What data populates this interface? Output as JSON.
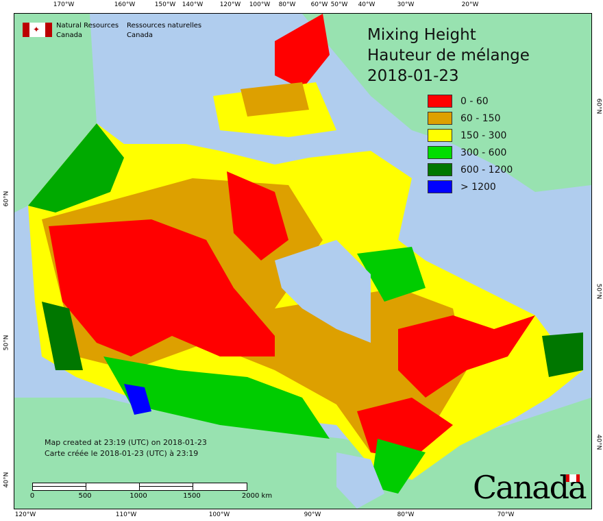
{
  "header": {
    "org_en": "Natural Resources",
    "org_en2": "Canada",
    "org_fr": "Ressources naturelles",
    "org_fr2": "Canada"
  },
  "title": {
    "line1": "Mixing Height",
    "line2": "Hauteur de mélange",
    "date": "2018-01-23"
  },
  "legend": [
    {
      "label": "0 - 60",
      "color": "#ff0000"
    },
    {
      "label": "60 - 150",
      "color": "#dda000"
    },
    {
      "label": "150 - 300",
      "color": "#ffff00"
    },
    {
      "label": "300 - 600",
      "color": "#00dd00"
    },
    {
      "label": "600 - 1200",
      "color": "#007700"
    },
    {
      "label": "> 1200",
      "color": "#0000ff"
    }
  ],
  "axes": {
    "top": [
      "170°W",
      "160°W",
      "150°W",
      "140°W",
      "120°W",
      "100°W",
      "80°W",
      "60°W",
      "50°W",
      "40°W",
      "30°W",
      "20°W"
    ],
    "bottom": [
      "120°W",
      "110°W",
      "100°W",
      "90°W",
      "80°W",
      "70°W"
    ],
    "left": [
      "60°N",
      "50°N",
      "40°N"
    ],
    "right": [
      "60°N",
      "50°N",
      "40°N"
    ]
  },
  "credit": {
    "en": "Map created at 23:19 (UTC) on 2018-01-23",
    "fr": "Carte créée le 2018-01-23 (UTC) à 23:19"
  },
  "scale": {
    "labels": [
      "0",
      "500",
      "1000",
      "1500",
      "2000 km"
    ]
  },
  "wordmark": "Canada",
  "colors": {
    "ocean": "#b0cdee",
    "land": "#98e2b0"
  }
}
